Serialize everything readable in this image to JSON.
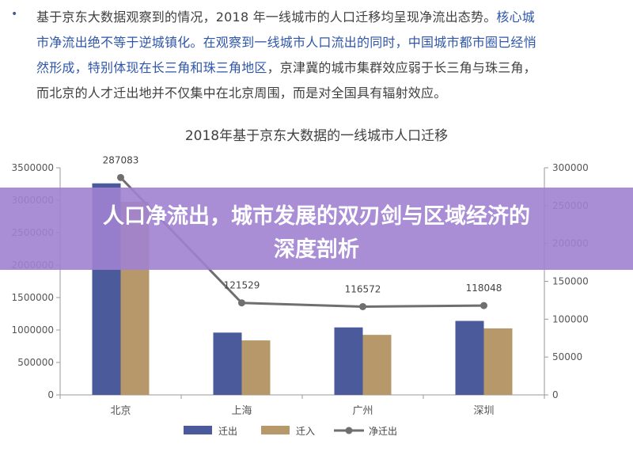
{
  "article": {
    "bullet": "•",
    "line1_a": "基于京东大数据观察到的情况，2018 年一线城市的人口迁移均呈现净流出态势。",
    "line1_b": "核心城",
    "line2_a": "市净流出绝不等于逆城镇化。在观察到一线城市人口流出的同时，中国城市都市圈已经悄",
    "line3_a": "然形成，特别体现在长三角和珠三角地区",
    "line3_b": "，京津冀的城市集群效应弱于长三角与珠三角，",
    "line4": "而北京的人才迁出地并不仅集中在北京周围，而是对全国具有辐射效应。"
  },
  "banner": {
    "line1": "人口净流出，城市发展的双刃剑与区域经济的",
    "line2": "深度剖析"
  },
  "colors": {
    "out": "#4a5a9a",
    "in": "#b7986a",
    "net": "#6f6f6f",
    "highlight": "#2f56a8",
    "banner": "#a082d2"
  },
  "chart_data": {
    "type": "bar",
    "title": "2018年基于京东大数据的一线城市人口迁移",
    "categories": [
      "北京",
      "上海",
      "广州",
      "深圳"
    ],
    "series": [
      {
        "name": "迁出",
        "type": "bar",
        "axis": "left",
        "values": [
          3260000,
          960000,
          1040000,
          1140000
        ]
      },
      {
        "name": "迁入",
        "type": "bar",
        "axis": "left",
        "values": [
          2975000,
          840000,
          925000,
          1025000
        ]
      },
      {
        "name": "净迁出",
        "type": "line",
        "axis": "right",
        "values": [
          287083,
          121529,
          116572,
          118048
        ]
      }
    ],
    "data_labels": [
      "287083",
      "121529",
      "116572",
      "118048"
    ],
    "left_ticks": [
      "0",
      "500000",
      "1000000",
      "1500000",
      "2000000",
      "2500000",
      "3000000",
      "3500000"
    ],
    "right_ticks": [
      "0",
      "50000",
      "100000",
      "150000",
      "200000",
      "250000",
      "300000"
    ],
    "ylim_left": [
      0,
      3500000
    ],
    "ylim_right": [
      0,
      300000
    ],
    "legend_position": "bottom-center",
    "grid": false
  }
}
